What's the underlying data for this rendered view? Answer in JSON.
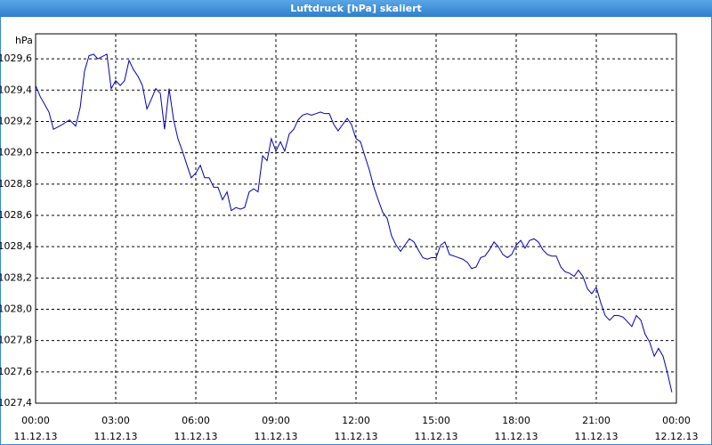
{
  "chart_data": {
    "type": "line",
    "title": "Luftdruck [hPa] skaliert",
    "y_label": "hPa",
    "xlim": [
      0,
      24
    ],
    "ylim": [
      1027.4,
      1029.76
    ],
    "grid": true,
    "xticks": [
      {
        "value": 0,
        "label": [
          "00:00",
          "11.12.13"
        ]
      },
      {
        "value": 3,
        "label": [
          "03:00",
          "11.12.13"
        ]
      },
      {
        "value": 6,
        "label": [
          "06:00",
          "11.12.13"
        ]
      },
      {
        "value": 9,
        "label": [
          "09:00",
          "11.12.13"
        ]
      },
      {
        "value": 12,
        "label": [
          "12:00",
          "11.12.13"
        ]
      },
      {
        "value": 15,
        "label": [
          "15:00",
          "11.12.13"
        ]
      },
      {
        "value": 18,
        "label": [
          "18:00",
          "11.12.13"
        ]
      },
      {
        "value": 21,
        "label": [
          "21:00",
          "11.12.13"
        ]
      },
      {
        "value": 24,
        "label": [
          "00:00",
          "12.12.13"
        ]
      }
    ],
    "yticks": [
      {
        "value": 1027.4,
        "label": "1027,4"
      },
      {
        "value": 1027.6,
        "label": "1027,6"
      },
      {
        "value": 1027.8,
        "label": "1027,8"
      },
      {
        "value": 1028.0,
        "label": "1028,0"
      },
      {
        "value": 1028.2,
        "label": "1028,2"
      },
      {
        "value": 1028.4,
        "label": "1028,4"
      },
      {
        "value": 1028.6,
        "label": "1028,6"
      },
      {
        "value": 1028.8,
        "label": "1028,8"
      },
      {
        "value": 1029.0,
        "label": "1029,0"
      },
      {
        "value": 1029.2,
        "label": "1029,2"
      },
      {
        "value": 1029.4,
        "label": "1029,4"
      },
      {
        "value": 1029.6,
        "label": "1029,6"
      }
    ],
    "series": [
      {
        "color": "#0000b0",
        "x": [
          0,
          0.17,
          0.5,
          0.67,
          1,
          1.27,
          1.5,
          1.67,
          1.83,
          2,
          2.17,
          2.33,
          2.67,
          2.83,
          3,
          3.17,
          3.33,
          3.5,
          3.67,
          3.83,
          4,
          4.17,
          4.33,
          4.5,
          4.67,
          4.83,
          5,
          5.17,
          5.33,
          5.5,
          5.67,
          5.83,
          6,
          6.17,
          6.33,
          6.5,
          6.67,
          6.83,
          7,
          7.17,
          7.33,
          7.5,
          7.67,
          7.83,
          8,
          8.17,
          8.33,
          8.5,
          8.67,
          8.83,
          9,
          9.17,
          9.33,
          9.5,
          9.67,
          9.83,
          10,
          10.17,
          10.33,
          10.5,
          10.67,
          10.83,
          11,
          11.17,
          11.33,
          11.5,
          11.67,
          11.83,
          12,
          12.17,
          12.33,
          12.5,
          12.67,
          12.83,
          13,
          13.17,
          13.33,
          13.5,
          13.67,
          13.83,
          14,
          14.17,
          14.33,
          14.5,
          14.67,
          14.83,
          15,
          15.17,
          15.33,
          15.5,
          15.67,
          15.83,
          16,
          16.17,
          16.33,
          16.5,
          16.67,
          16.83,
          17,
          17.17,
          17.33,
          17.5,
          17.67,
          17.83,
          18,
          18.17,
          18.33,
          18.5,
          18.67,
          18.83,
          19,
          19.17,
          19.33,
          19.5,
          19.67,
          19.83,
          20,
          20.17,
          20.33,
          20.5,
          20.67,
          20.83,
          21,
          21.17,
          21.33,
          21.5,
          21.67,
          21.83,
          22,
          22.17,
          22.33,
          22.5,
          22.67,
          22.83,
          23,
          23.17,
          23.33,
          23.5,
          23.67,
          23.83
        ],
        "values": [
          1029.43,
          1029.36,
          1029.26,
          1029.15,
          1029.18,
          1029.21,
          1029.17,
          1029.29,
          1029.52,
          1029.62,
          1029.63,
          1029.6,
          1029.63,
          1029.41,
          1029.46,
          1029.43,
          1029.46,
          1029.59,
          1029.53,
          1029.49,
          1029.43,
          1029.28,
          1029.34,
          1029.41,
          1029.38,
          1029.15,
          1029.41,
          1029.21,
          1029.09,
          1029.01,
          1028.92,
          1028.84,
          1028.87,
          1028.92,
          1028.84,
          1028.84,
          1028.78,
          1028.78,
          1028.7,
          1028.75,
          1028.63,
          1028.65,
          1028.64,
          1028.65,
          1028.75,
          1028.77,
          1028.75,
          1028.98,
          1028.95,
          1029.09,
          1029.01,
          1029.07,
          1029.01,
          1029.12,
          1029.15,
          1029.21,
          1029.24,
          1029.25,
          1029.24,
          1029.25,
          1029.26,
          1029.25,
          1029.25,
          1029.18,
          1029.14,
          1029.18,
          1029.22,
          1029.18,
          1029.09,
          1029.07,
          1028.98,
          1028.89,
          1028.78,
          1028.7,
          1028.62,
          1028.58,
          1028.47,
          1028.41,
          1028.37,
          1028.41,
          1028.45,
          1028.43,
          1028.38,
          1028.33,
          1028.32,
          1028.33,
          1028.33,
          1028.41,
          1028.43,
          1028.35,
          1028.34,
          1028.33,
          1028.32,
          1028.3,
          1028.26,
          1028.27,
          1028.33,
          1028.34,
          1028.38,
          1028.43,
          1028.4,
          1028.35,
          1028.33,
          1028.35,
          1028.41,
          1028.44,
          1028.39,
          1028.44,
          1028.45,
          1028.43,
          1028.38,
          1028.35,
          1028.34,
          1028.34,
          1028.27,
          1028.24,
          1028.23,
          1028.21,
          1028.25,
          1028.21,
          1028.13,
          1028.1,
          1028.14,
          1028.04,
          1027.96,
          1027.93,
          1027.96,
          1027.96,
          1027.95,
          1027.92,
          1027.89,
          1027.96,
          1027.93,
          1027.84,
          1027.79,
          1027.7,
          1027.75,
          1027.7,
          1027.59,
          1027.47
        ]
      }
    ]
  }
}
